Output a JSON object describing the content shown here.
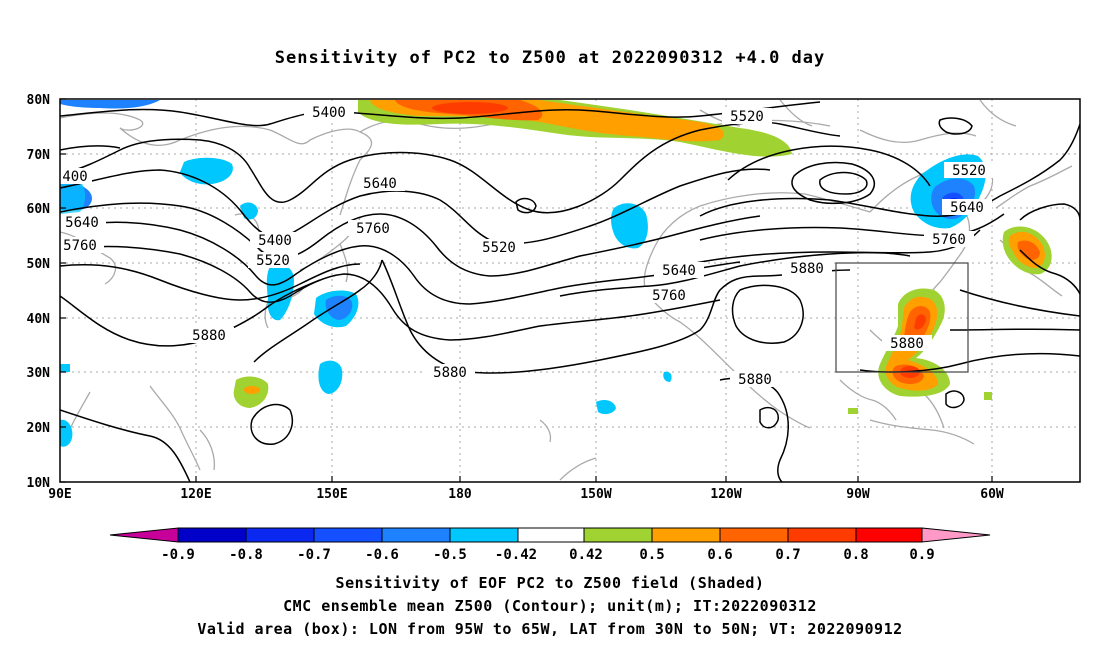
{
  "title": "Sensitivity of PC2 to Z500 at 2022090312 +4.0 day",
  "map": {
    "lat_labels": [
      "80N",
      "70N",
      "60N",
      "50N",
      "40N",
      "30N",
      "20N",
      "10N"
    ],
    "lon_labels": [
      "90E",
      "120E",
      "150E",
      "180",
      "150W",
      "120W",
      "90W",
      "60W"
    ],
    "contour_labels": [
      "5400",
      "5520",
      "400",
      "5640",
      "5760",
      "5640",
      "5400",
      "5520",
      "5760",
      "5520",
      "5640",
      "5760",
      "5880",
      "5880",
      "5880",
      "5880",
      "5520",
      "5640",
      "5760",
      "5880"
    ]
  },
  "colorbar": {
    "labels": [
      "-0.9",
      "-0.8",
      "-0.7",
      "-0.6",
      "-0.5",
      "-0.42",
      "0.42",
      "0.5",
      "0.6",
      "0.7",
      "0.8",
      "0.9"
    ],
    "colors": [
      "#0000c8",
      "#0a28f0",
      "#1450ff",
      "#1e82ff",
      "#00c8ff",
      "#ffffff",
      "#a0d232",
      "#ffa000",
      "#ff6400",
      "#ff3c00",
      "#ff0000"
    ],
    "low_color": "#c8009a",
    "high_color": "#ff9ac8"
  },
  "caption": {
    "line1": "Sensitivity of EOF PC2 to Z500 field (Shaded)",
    "line2": "CMC ensemble mean Z500 (Contour); unit(m); IT:2022090312",
    "line3": "Valid area (box): LON from 95W to 65W, LAT from 30N to 50N; VT: 2022090912"
  }
}
